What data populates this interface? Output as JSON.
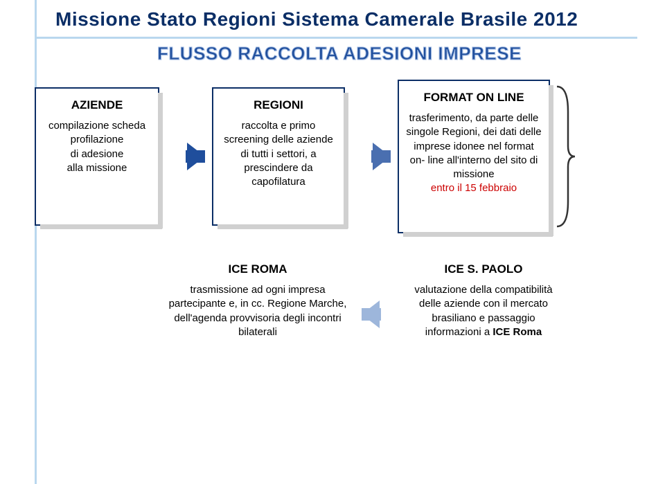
{
  "title": "Missione Stato Regioni Sistema Camerale Brasile 2012",
  "subtitle": "FLUSSO RACCOLTA ADESIONI IMPRESE",
  "colors": {
    "title_color": "#0b2e66",
    "subtitle_color": "#1f4e9c",
    "box_border": "#0b2e66",
    "arrow1": "#1f4e9c",
    "arrow2": "#4a6fb0",
    "arrow3": "#9db6db",
    "red": "#cc0000",
    "guide_line": "#b9d7ee",
    "shadow": "#d0d0d0",
    "curly_stroke": "#333333"
  },
  "boxes": {
    "aziende": {
      "title": "AZIENDE",
      "body": "compilazione scheda profilazione\ndi adesione\nalla missione"
    },
    "regioni": {
      "title": "REGIONI",
      "body": "raccolta e primo screening delle aziende di tutti i settori, a prescindere da capofilatura"
    },
    "format": {
      "title": "FORMAT ON LINE",
      "body": "trasferimento, da parte delle singole Regioni, dei dati delle imprese idonee nel format on- line all'interno del sito di missione",
      "deadline": "entro il 15 febbraio"
    },
    "iceroma": {
      "title": "ICE ROMA",
      "body": "trasmissione ad ogni impresa partecipante e, in cc. Regione Marche, dell'agenda provvisoria degli incontri bilaterali"
    },
    "icespaolo": {
      "title": "ICE S. PAOLO",
      "body_pre": "valutazione della compatibilità delle aziende con il mercato brasiliano e passaggio informazioni a ",
      "body_bold": "ICE Roma"
    }
  }
}
